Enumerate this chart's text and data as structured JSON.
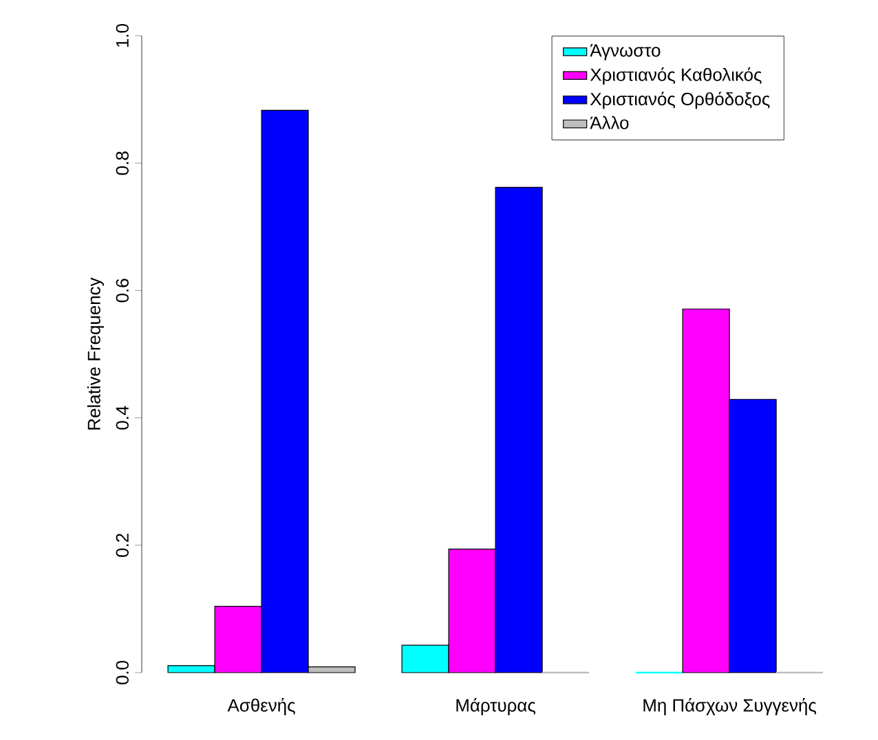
{
  "chart_data": {
    "type": "bar",
    "ylabel": "Relative Frequency",
    "categories": [
      "Ασθενής",
      "Μάρτυρας",
      "Μη Πάσχων Συγγενής"
    ],
    "series": [
      {
        "name": "Άγνωστο",
        "color": "#00ffff",
        "values": [
          0.011,
          0.043,
          0
        ]
      },
      {
        "name": "Χριστιανός Καθολικός",
        "color": "#ff00ff",
        "values": [
          0.104,
          0.194,
          0.571
        ]
      },
      {
        "name": "Χριστιανός Ορθόδοξος",
        "color": "#0000ff",
        "values": [
          0.883,
          0.762,
          0.429
        ]
      },
      {
        "name": "Άλλο",
        "color": "#bebebe",
        "values": [
          0.009,
          0,
          0
        ]
      }
    ],
    "ylim": [
      0,
      1
    ],
    "yticks": [
      {
        "value": 0,
        "label": "0.0"
      },
      0.2,
      0.4,
      0.6,
      0.8,
      {
        "value": 1,
        "label": "1.0"
      }
    ],
    "grid": false,
    "legend": "top right"
  }
}
